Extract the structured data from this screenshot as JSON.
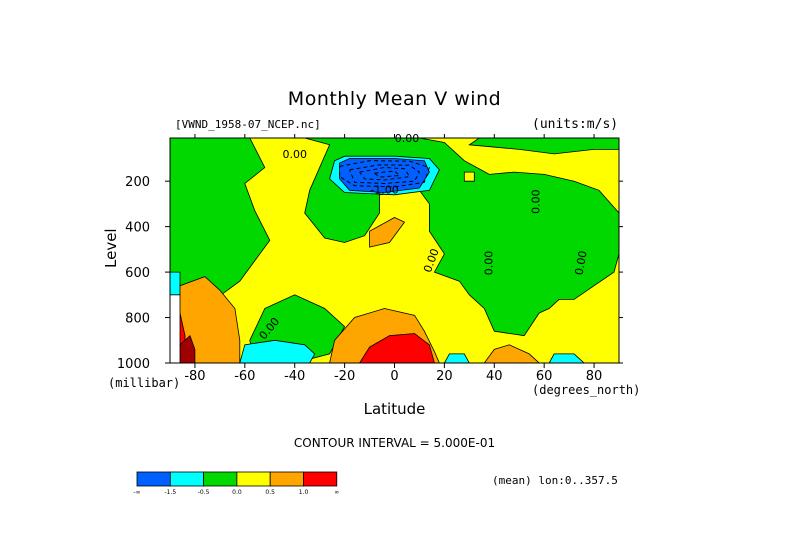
{
  "chart_data": {
    "type": "heatmap",
    "title": "Monthly Mean V wind",
    "dataset": "[VWND_1958-07_NCEP.nc]",
    "units": "(units:m/s)",
    "xlabel": "Latitude",
    "xlabel_unit": "(degrees_north)",
    "ylabel": "Level",
    "ylabel_unit": "(millibar)",
    "xlim": [
      -90,
      90
    ],
    "ylim": [
      1000,
      10
    ],
    "x_ticks": [
      -80,
      -60,
      -40,
      -20,
      0,
      20,
      40,
      60,
      80
    ],
    "x_tick_labels": [
      "-80",
      "-60",
      "-40",
      "-20",
      "0",
      "20",
      "40",
      "60",
      "80"
    ],
    "y_ticks": [
      200,
      400,
      600,
      800,
      1000
    ],
    "y_tick_labels": [
      "200",
      "400",
      "600",
      "800",
      "1000"
    ],
    "contour_interval": "CONTOUR INTERVAL = 5.000E-01",
    "mean_note": "(mean) lon:0..357.5",
    "contour_labels": [
      {
        "text": "0.00",
        "lat": 5,
        "level": 15,
        "rotate": 0
      },
      {
        "text": "0.00",
        "lat": -40,
        "level": 85,
        "rotate": 0
      },
      {
        "text": "-1.00",
        "lat": -4,
        "level": 240,
        "rotate": 0
      },
      {
        "text": "0.00",
        "lat": 57,
        "level": 290,
        "rotate": -90
      },
      {
        "text": "0.00",
        "lat": 15,
        "level": 550,
        "rotate": -70
      },
      {
        "text": "0.00",
        "lat": 38,
        "level": 560,
        "rotate": -90
      },
      {
        "text": "0.00",
        "lat": 75,
        "level": 560,
        "rotate": -80
      },
      {
        "text": "0.00",
        "lat": -50,
        "level": 850,
        "rotate": -50
      }
    ],
    "regions": [
      {
        "bin": "0.0–0.5",
        "color": "#ffff00",
        "points": [
          [
            -90,
            10
          ],
          [
            90,
            10
          ],
          [
            90,
            1000
          ],
          [
            -90,
            1000
          ]
        ]
      },
      {
        "bin": "-0.5–0.0",
        "color": "#00d800",
        "points": [
          [
            -90,
            10
          ],
          [
            -58,
            10
          ],
          [
            -52,
            140
          ],
          [
            -60,
            210
          ],
          [
            -56,
            330
          ],
          [
            -50,
            460
          ],
          [
            -62,
            640
          ],
          [
            -72,
            720
          ],
          [
            -90,
            720
          ]
        ]
      },
      {
        "bin": "-0.5–0.0",
        "color": "#00d800",
        "points": [
          [
            -52,
            760
          ],
          [
            -40,
            700
          ],
          [
            -28,
            760
          ],
          [
            -20,
            840
          ],
          [
            -26,
            960
          ],
          [
            -40,
            1000
          ],
          [
            -56,
            1000
          ],
          [
            -58,
            900
          ]
        ]
      },
      {
        "bin": "-0.5–0.0",
        "color": "#00d800",
        "points": [
          [
            -36,
            10
          ],
          [
            -26,
            40
          ],
          [
            -34,
            240
          ],
          [
            -36,
            340
          ],
          [
            -28,
            450
          ],
          [
            -20,
            470
          ],
          [
            -12,
            440
          ],
          [
            -6,
            340
          ],
          [
            -6,
            260
          ],
          [
            10,
            240
          ],
          [
            14,
            300
          ],
          [
            14,
            420
          ],
          [
            20,
            520
          ],
          [
            16,
            600
          ],
          [
            26,
            640
          ],
          [
            30,
            700
          ],
          [
            36,
            760
          ],
          [
            40,
            860
          ],
          [
            52,
            880
          ],
          [
            58,
            780
          ],
          [
            62,
            760
          ],
          [
            66,
            720
          ],
          [
            72,
            720
          ],
          [
            80,
            660
          ],
          [
            88,
            600
          ],
          [
            90,
            520
          ],
          [
            90,
            340
          ],
          [
            82,
            240
          ],
          [
            72,
            200
          ],
          [
            60,
            170
          ],
          [
            48,
            160
          ],
          [
            38,
            170
          ],
          [
            28,
            110
          ],
          [
            20,
            30
          ],
          [
            10,
            10
          ],
          [
            -20,
            10
          ]
        ]
      },
      {
        "bin": "-0.5–0.0",
        "color": "#00d800",
        "points": [
          [
            30,
            40
          ],
          [
            50,
            60
          ],
          [
            64,
            80
          ],
          [
            80,
            60
          ],
          [
            90,
            60
          ],
          [
            90,
            10
          ],
          [
            34,
            10
          ]
        ]
      },
      {
        "bin": "-1.0–-0.5",
        "color": "#00ffff",
        "points": [
          [
            -24,
            110
          ],
          [
            -20,
            90
          ],
          [
            0,
            90
          ],
          [
            14,
            100
          ],
          [
            18,
            150
          ],
          [
            14,
            240
          ],
          [
            0,
            260
          ],
          [
            -20,
            250
          ],
          [
            -26,
            190
          ]
        ]
      },
      {
        "bin": "< -1.0",
        "color": "#0060ff",
        "points": [
          [
            -22,
            120
          ],
          [
            -18,
            100
          ],
          [
            0,
            100
          ],
          [
            12,
            110
          ],
          [
            14,
            160
          ],
          [
            10,
            230
          ],
          [
            -4,
            250
          ],
          [
            -18,
            240
          ],
          [
            -22,
            190
          ]
        ]
      },
      {
        "bin": "0.5–1.0",
        "color": "#ffa500",
        "points": [
          [
            -10,
            420
          ],
          [
            0,
            360
          ],
          [
            4,
            380
          ],
          [
            -2,
            470
          ],
          [
            -10,
            490
          ]
        ]
      },
      {
        "bin": "0.5–1.0",
        "color": "#ffa500",
        "points": [
          [
            -26,
            1000
          ],
          [
            -24,
            900
          ],
          [
            -16,
            800
          ],
          [
            -4,
            760
          ],
          [
            8,
            790
          ],
          [
            12,
            860
          ],
          [
            16,
            950
          ],
          [
            18,
            1000
          ]
        ]
      },
      {
        "bin": "0.5–1.0",
        "color": "#ffa500",
        "points": [
          [
            -90,
            760
          ],
          [
            -86,
            660
          ],
          [
            -76,
            620
          ],
          [
            -70,
            680
          ],
          [
            -64,
            760
          ],
          [
            -62,
            900
          ],
          [
            -62,
            1000
          ],
          [
            -90,
            1000
          ]
        ]
      },
      {
        "bin": "0.5–1.0",
        "color": "#ffa500",
        "points": [
          [
            36,
            1000
          ],
          [
            40,
            940
          ],
          [
            46,
            920
          ],
          [
            54,
            960
          ],
          [
            58,
            1000
          ]
        ]
      },
      {
        "bin": "-1.0–-0.5",
        "color": "#00ffff",
        "points": [
          [
            -62,
            1000
          ],
          [
            -60,
            920
          ],
          [
            -48,
            900
          ],
          [
            -36,
            920
          ],
          [
            -32,
            960
          ],
          [
            -34,
            1000
          ]
        ]
      },
      {
        "bin": "-1.0–-0.5",
        "color": "#00ffff",
        "points": [
          [
            20,
            1000
          ],
          [
            22,
            960
          ],
          [
            28,
            960
          ],
          [
            30,
            1000
          ]
        ]
      },
      {
        "bin": "-1.0–-0.5",
        "color": "#00ffff",
        "points": [
          [
            62,
            1000
          ],
          [
            64,
            960
          ],
          [
            72,
            960
          ],
          [
            76,
            1000
          ]
        ]
      },
      {
        "bin": "-1.0–-0.5",
        "color": "#00ffff",
        "points": [
          [
            -90,
            600
          ],
          [
            -86,
            600
          ],
          [
            -86,
            700
          ],
          [
            -90,
            720
          ]
        ]
      },
      {
        "bin": "> 1.0",
        "color": "#ff0000",
        "points": [
          [
            -14,
            1000
          ],
          [
            -10,
            930
          ],
          [
            -2,
            880
          ],
          [
            8,
            870
          ],
          [
            14,
            920
          ],
          [
            16,
            1000
          ]
        ]
      },
      {
        "bin": "> 1.0",
        "color": "#ff0000",
        "points": [
          [
            -90,
            780
          ],
          [
            -86,
            780
          ],
          [
            -84,
            880
          ],
          [
            -84,
            1000
          ],
          [
            -90,
            1000
          ]
        ]
      },
      {
        "bin": "> 1.0",
        "color": "#a00000",
        "points": [
          [
            -86,
            920
          ],
          [
            -82,
            880
          ],
          [
            -80,
            940
          ],
          [
            -80,
            1000
          ],
          [
            -86,
            1000
          ]
        ]
      },
      {
        "bin": "missing",
        "color": "#ffffff",
        "points": [
          [
            -90,
            700
          ],
          [
            -86,
            700
          ],
          [
            -86,
            1000
          ],
          [
            -90,
            1000
          ]
        ]
      },
      {
        "bin": "0.0–0.5",
        "color": "#ffff00",
        "points": [
          [
            28,
            160
          ],
          [
            32,
            160
          ],
          [
            32,
            200
          ],
          [
            28,
            200
          ]
        ]
      }
    ],
    "dashed_contours": [
      [
        [
          -22,
          135
        ],
        [
          -10,
          110
        ],
        [
          6,
          112
        ],
        [
          14,
          140
        ],
        [
          12,
          205
        ],
        [
          0,
          225
        ],
        [
          -16,
          220
        ],
        [
          -22,
          180
        ],
        [
          -22,
          135
        ]
      ],
      [
        [
          -18,
          150
        ],
        [
          -6,
          128
        ],
        [
          6,
          130
        ],
        [
          10,
          160
        ],
        [
          8,
          200
        ],
        [
          -4,
          210
        ],
        [
          -16,
          205
        ],
        [
          -18,
          150
        ]
      ],
      [
        [
          -14,
          160
        ],
        [
          -4,
          140
        ],
        [
          4,
          145
        ],
        [
          6,
          180
        ],
        [
          -4,
          195
        ],
        [
          -12,
          190
        ],
        [
          -14,
          160
        ]
      ],
      [
        [
          -8,
          165
        ],
        [
          0,
          155
        ],
        [
          2,
          175
        ],
        [
          -6,
          182
        ],
        [
          -8,
          165
        ]
      ]
    ],
    "colorbar": {
      "bins": [
        {
          "color": "#0060ff",
          "label": "-∞"
        },
        {
          "color": "#00ffff",
          "label": "-1.5"
        },
        {
          "color": "#00d800",
          "label": "-0.5"
        },
        {
          "color": "#ffff00",
          "label": "0.0"
        },
        {
          "color": "#ffa500",
          "label": "0.5"
        },
        {
          "color": "#ff0000",
          "label": "1.0"
        }
      ],
      "end_label": "∞"
    }
  }
}
